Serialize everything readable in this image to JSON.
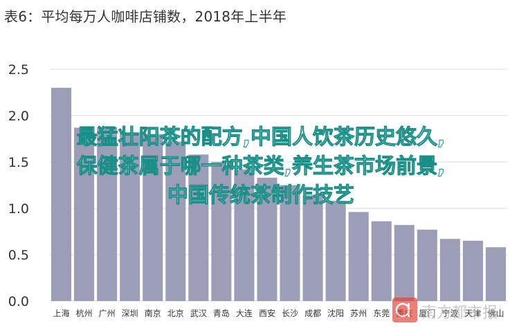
{
  "title": "表6：平均每万人咖啡店铺数，2018年上半年",
  "overlay_lines": [
    "最猛壮阳茶的配方,中国人饮茶历史悠久,",
    "保健茶属于哪一种茶类,养生茶市场前景,",
    "中国传统茶制作技艺"
  ],
  "watermark": {
    "text": "南方都市报",
    "badge_icon": "nd-logo-icon"
  },
  "colors": {
    "bar": "#9c9db7",
    "grid": "#d9d9d9",
    "axis_text": "#333333",
    "overlay_fill": "#ffffff",
    "overlay_stroke": "#1a8f88"
  },
  "chart_data": {
    "type": "bar",
    "title": "表6：平均每万人咖啡店铺数，2018年上半年",
    "xlabel": "",
    "ylabel": "",
    "categories": [
      "上海",
      "杭州",
      "广州",
      "深圳",
      "南京",
      "北京",
      "武汉",
      "青岛",
      "大连",
      "西安",
      "长沙",
      "成都",
      "沈阳",
      "苏州",
      "东莞",
      "重庆",
      "厦门",
      "宁波",
      "天津",
      "佛山"
    ],
    "values": [
      2.3,
      1.87,
      1.87,
      1.82,
      1.8,
      1.72,
      1.58,
      1.5,
      1.42,
      1.33,
      1.25,
      1.14,
      1.08,
      0.96,
      0.86,
      0.82,
      0.77,
      0.67,
      0.65,
      0.58
    ],
    "ylim": [
      0,
      2.5
    ],
    "yticks": [
      "0.0",
      "0.5",
      "1.0",
      "1.5",
      "2.0",
      "2.5"
    ],
    "grid": true,
    "legend": "none"
  }
}
